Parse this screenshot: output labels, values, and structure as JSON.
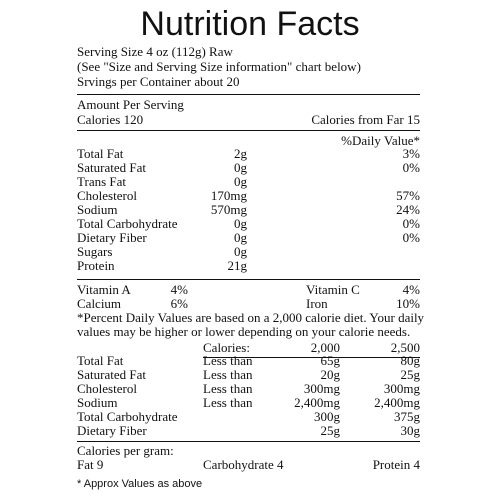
{
  "title": "Nutrition Facts",
  "serving": {
    "size": "Serving Size 4 oz (112g) Raw",
    "see_chart": "(See \"Size and Serving Size information\" chart below)",
    "per_container": "Srvings per Container about 20"
  },
  "amount": {
    "header": "Amount Per Serving",
    "calories": "Calories 120",
    "calories_from_fat": "Calories from Far 15",
    "daily_value_header": "%Daily Value*"
  },
  "nutrients": [
    {
      "name": "Total Fat",
      "amount": "2g",
      "dv": "3%"
    },
    {
      "name": "Saturated Fat",
      "amount": "0g",
      "dv": "0%"
    },
    {
      "name": "Trans Fat",
      "amount": "0g",
      "dv": ""
    },
    {
      "name": "Cholesterol",
      "amount": "170mg",
      "dv": "57%"
    },
    {
      "name": "Sodium",
      "amount": "570mg",
      "dv": "24%"
    },
    {
      "name": "Total Carbohydrate",
      "amount": "0g",
      "dv": "0%"
    },
    {
      "name": "Dietary Fiber",
      "amount": "0g",
      "dv": "0%"
    },
    {
      "name": "Sugars",
      "amount": "0g",
      "dv": ""
    },
    {
      "name": "Protein",
      "amount": "21g",
      "dv": ""
    }
  ],
  "vitamins": [
    {
      "left_name": "Vitamin A",
      "left_value": "4%",
      "right_name": "Vitamin C",
      "right_value": "4%"
    },
    {
      "left_name": "Calcium",
      "left_value": "6%",
      "right_name": "Iron",
      "right_value": "10%"
    }
  ],
  "percent_note": [
    "*Percent Daily Values are based on a 2,000 calorie diet. Your daily",
    "values may be higher or lower depending on your calorie needs."
  ],
  "dv_table": {
    "header": {
      "label": "Calories:",
      "col1": "2,000",
      "col2": "2,500"
    },
    "rows": [
      {
        "name": "Total Fat",
        "qualifier": "Less than",
        "col1": "65g",
        "col2": "80g"
      },
      {
        "name": "Saturated Fat",
        "qualifier": "Less than",
        "col1": "20g",
        "col2": "25g"
      },
      {
        "name": "Cholesterol",
        "qualifier": "Less than",
        "col1": "300mg",
        "col2": "300mg"
      },
      {
        "name": "Sodium",
        "qualifier": "Less than",
        "col1": "2,400mg",
        "col2": "2,400mg"
      },
      {
        "name": "Total Carbohydrate",
        "qualifier": "",
        "col1": "300g",
        "col2": "375g"
      },
      {
        "name": "Dietary Fiber",
        "qualifier": "",
        "col1": "25g",
        "col2": "30g"
      }
    ]
  },
  "per_gram": {
    "header": "Calories per gram:",
    "fat": "Fat 9",
    "carbohydrate": "Carbohydrate 4",
    "protein": "Protein 4"
  },
  "footnote": "* Approx Values as above"
}
